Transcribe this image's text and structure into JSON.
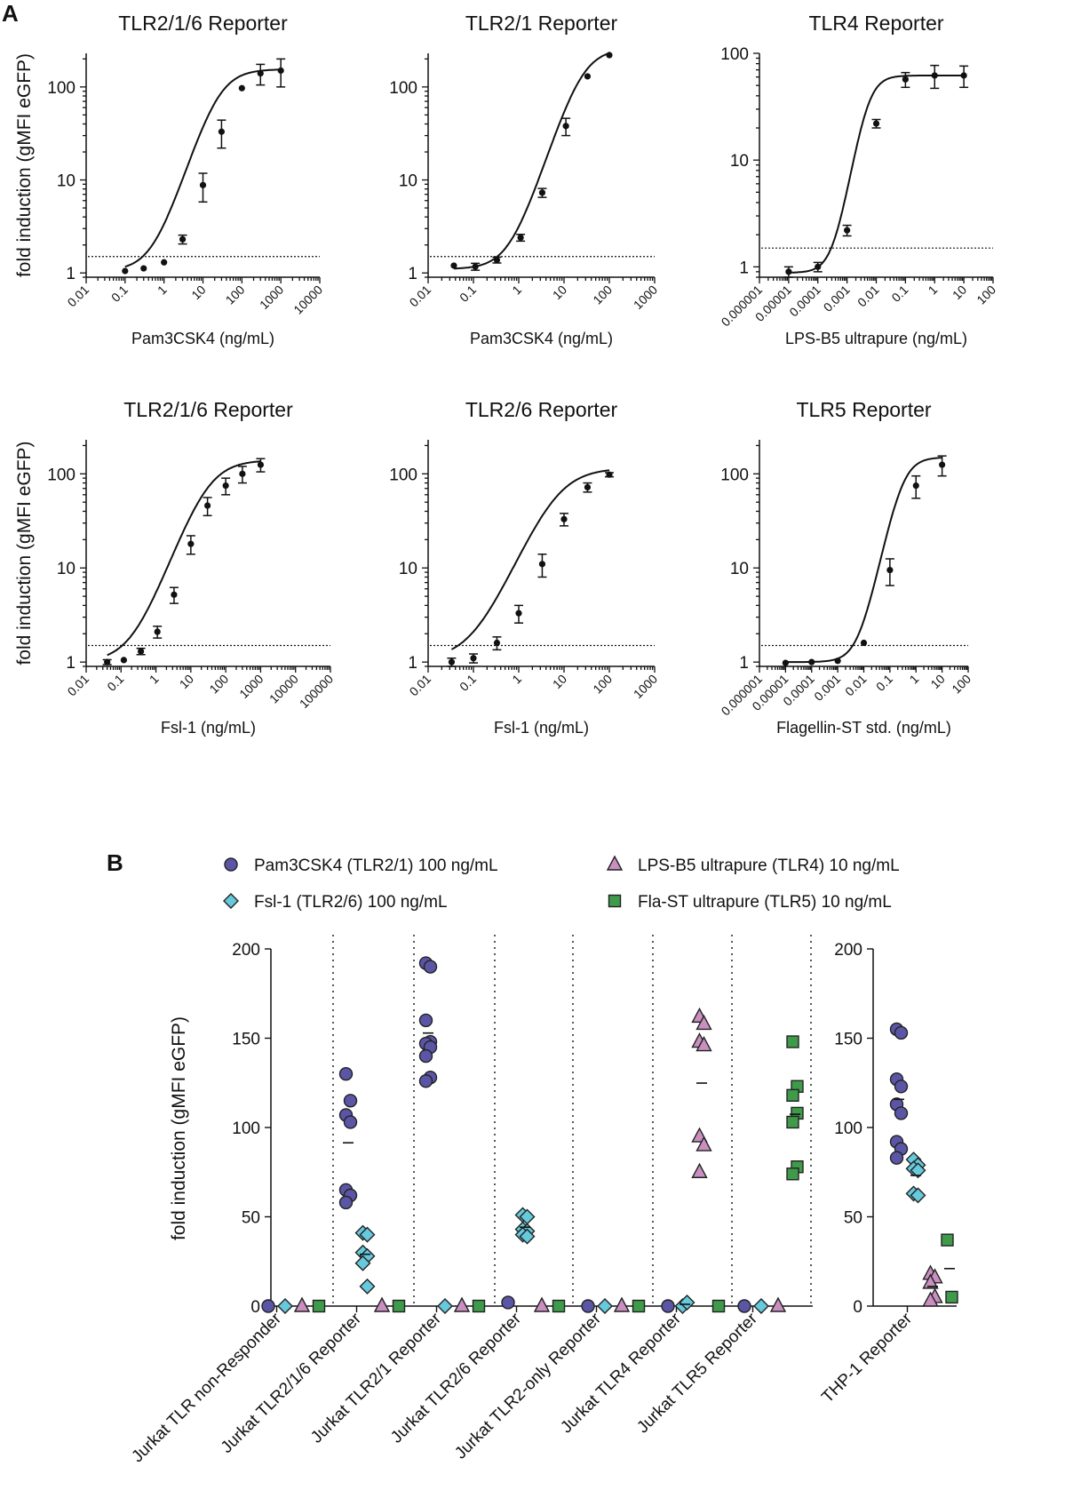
{
  "panel_labels": {
    "a": "A",
    "b": "B"
  },
  "chart_data": [
    {
      "type": "line",
      "title": "TLR2/1/6 Reporter",
      "xlabel": "Pam3CSK4 (ng/mL)",
      "ylabel": "fold induction (gMFI eGFP)",
      "xscale": "log",
      "yscale": "log",
      "xlim": [
        0.01,
        10000
      ],
      "ylim": [
        0.9,
        230
      ],
      "xticks": [
        "0.01",
        "0.1",
        "1",
        "10",
        "100",
        "1000",
        "10000"
      ],
      "yticks": [
        "1",
        "10",
        "100"
      ],
      "threshold": 1.5,
      "points": [
        {
          "x": 0.1,
          "y": 1.05
        },
        {
          "x": 0.3,
          "y": 1.12
        },
        {
          "x": 1,
          "y": 1.3
        },
        {
          "x": 3,
          "y": 2.3,
          "err": 0.25
        },
        {
          "x": 10,
          "y": 8.8,
          "err": 3
        },
        {
          "x": 30,
          "y": 33,
          "err": 11
        },
        {
          "x": 100,
          "y": 97
        },
        {
          "x": 300,
          "y": 140,
          "err": 35
        },
        {
          "x": 1000,
          "y": 150,
          "err": 50
        }
      ],
      "curve": {
        "bottom": 1.05,
        "top": 155,
        "ec50": 25,
        "hill": 1.3
      }
    },
    {
      "type": "line",
      "title": "TLR2/1 Reporter",
      "xlabel": "Pam3CSK4 (ng/mL)",
      "ylabel": "",
      "xscale": "log",
      "yscale": "log",
      "xlim": [
        0.01,
        1000
      ],
      "ylim": [
        0.9,
        230
      ],
      "xticks": [
        "0.01",
        "0.1",
        "1",
        "10",
        "100",
        "1000"
      ],
      "yticks": [
        "1",
        "10",
        "100"
      ],
      "threshold": 1.5,
      "points": [
        {
          "x": 0.037,
          "y": 1.2
        },
        {
          "x": 0.11,
          "y": 1.17,
          "err": 0.1
        },
        {
          "x": 0.33,
          "y": 1.38,
          "err": 0.1
        },
        {
          "x": 1.1,
          "y": 2.4,
          "err": 0.2
        },
        {
          "x": 3.3,
          "y": 7.3,
          "err": 0.8
        },
        {
          "x": 11,
          "y": 38,
          "err": 8
        },
        {
          "x": 33,
          "y": 130
        },
        {
          "x": 100,
          "y": 220
        }
      ],
      "curve": {
        "bottom": 1.1,
        "top": 260,
        "ec50": 25,
        "hill": 1.5
      }
    },
    {
      "type": "line",
      "title": "TLR4 Reporter",
      "xlabel": "LPS-B5 ultrapure (ng/mL)",
      "ylabel": "",
      "xscale": "log",
      "yscale": "log",
      "xlim": [
        1e-06,
        100
      ],
      "ylim": [
        0.8,
        100
      ],
      "xticks": [
        "0.000001",
        "0.00001",
        "0.0001",
        "0.001",
        "0.01",
        "0.1",
        "1",
        "10",
        "100"
      ],
      "yticks": [
        "1",
        "10",
        "100"
      ],
      "threshold": 1.5,
      "points": [
        {
          "x": 1e-05,
          "y": 0.9,
          "err": 0.1
        },
        {
          "x": 0.0001,
          "y": 1.0,
          "err": 0.1
        },
        {
          "x": 0.001,
          "y": 2.2,
          "err": 0.25
        },
        {
          "x": 0.01,
          "y": 22,
          "err": 2
        },
        {
          "x": 0.1,
          "y": 57,
          "err": 9
        },
        {
          "x": 1,
          "y": 62,
          "err": 15
        },
        {
          "x": 10,
          "y": 62,
          "err": 14
        }
      ],
      "curve": {
        "bottom": 0.88,
        "top": 62,
        "ec50": 0.005,
        "hill": 1.6
      }
    },
    {
      "type": "line",
      "title": "TLR2/1/6 Reporter",
      "xlabel": "Fsl-1 (ng/mL)",
      "ylabel": "fold induction (gMFI eGFP)",
      "xscale": "log",
      "yscale": "log",
      "xlim": [
        0.01,
        100000
      ],
      "ylim": [
        0.9,
        230
      ],
      "xticks": [
        "0.01",
        "0.1",
        "1",
        "10",
        "100",
        "1000",
        "10000",
        "100000"
      ],
      "yticks": [
        "1",
        "10",
        "100"
      ],
      "threshold": 1.5,
      "points": [
        {
          "x": 0.04,
          "y": 1.0,
          "err": 0.06
        },
        {
          "x": 0.12,
          "y": 1.05
        },
        {
          "x": 0.37,
          "y": 1.3,
          "err": 0.1
        },
        {
          "x": 1.1,
          "y": 2.1,
          "err": 0.3
        },
        {
          "x": 3.3,
          "y": 5.2,
          "err": 1
        },
        {
          "x": 10,
          "y": 18,
          "err": 4
        },
        {
          "x": 30,
          "y": 46,
          "err": 10
        },
        {
          "x": 100,
          "y": 75,
          "err": 15
        },
        {
          "x": 300,
          "y": 100,
          "err": 20
        },
        {
          "x": 1000,
          "y": 125,
          "err": 20
        }
      ],
      "curve": {
        "bottom": 1.0,
        "top": 140,
        "ec50": 30,
        "hill": 1.0
      }
    },
    {
      "type": "line",
      "title": "TLR2/6 Reporter",
      "xlabel": "Fsl-1 (ng/mL)",
      "ylabel": "",
      "xscale": "log",
      "yscale": "log",
      "xlim": [
        0.01,
        1000
      ],
      "ylim": [
        0.9,
        230
      ],
      "xticks": [
        "0.01",
        "0.1",
        "1",
        "10",
        "100",
        "1000"
      ],
      "yticks": [
        "1",
        "10",
        "100"
      ],
      "threshold": 1.5,
      "points": [
        {
          "x": 0.033,
          "y": 1.0,
          "err": 0.1
        },
        {
          "x": 0.1,
          "y": 1.1,
          "err": 0.12
        },
        {
          "x": 0.33,
          "y": 1.6,
          "err": 0.25
        },
        {
          "x": 1,
          "y": 3.3,
          "err": 0.7
        },
        {
          "x": 3.3,
          "y": 11,
          "err": 3
        },
        {
          "x": 10,
          "y": 33,
          "err": 5
        },
        {
          "x": 33,
          "y": 72,
          "err": 8
        },
        {
          "x": 100,
          "y": 98,
          "err": 5
        }
      ],
      "curve": {
        "bottom": 1.05,
        "top": 115,
        "ec50": 7,
        "hill": 1.1
      }
    },
    {
      "type": "line",
      "title": "TLR5 Reporter",
      "xlabel": "Flagellin-ST std. (ng/mL)",
      "ylabel": "",
      "xscale": "log",
      "yscale": "log",
      "xlim": [
        1e-06,
        100
      ],
      "ylim": [
        0.9,
        230
      ],
      "xticks": [
        "0.000001",
        "0.00001",
        "0.0001",
        "0.001",
        "0.01",
        "0.1",
        "1",
        "10",
        "100"
      ],
      "yticks": [
        "1",
        "10",
        "100"
      ],
      "threshold": 1.5,
      "points": [
        {
          "x": 1e-05,
          "y": 0.98
        },
        {
          "x": 0.0001,
          "y": 1.0
        },
        {
          "x": 0.001,
          "y": 1.03
        },
        {
          "x": 0.01,
          "y": 1.6
        },
        {
          "x": 0.1,
          "y": 9.5,
          "err": 3
        },
        {
          "x": 1,
          "y": 75,
          "err": 20
        },
        {
          "x": 10,
          "y": 125,
          "err": 30
        }
      ],
      "curve": {
        "bottom": 1.0,
        "top": 150,
        "ec50": 0.3,
        "hill": 1.3
      }
    },
    {
      "type": "scatter",
      "title": "",
      "ylabel": "fold induction (gMFI eGFP)",
      "ylim": [
        0,
        200
      ],
      "yticks": [
        "0",
        "50",
        "100",
        "150",
        "200"
      ],
      "legend": [
        {
          "label": "Pam3CSK4 (TLR2/1) 100 ng/mL",
          "marker": "circle",
          "color": "#5b55a6"
        },
        {
          "label": "Fsl-1 (TLR2/6) 100 ng/mL",
          "marker": "diamond",
          "color": "#66c9dc"
        },
        {
          "label": "LPS-B5 ultrapure (TLR4) 10 ng/mL",
          "marker": "triangle",
          "color": "#c98fc0"
        },
        {
          "label": "Fla-ST ultrapure (TLR5) 10 ng/mL",
          "marker": "square",
          "color": "#3f9b4a"
        }
      ],
      "categories": [
        "Jurkat TLR non-Responder",
        "Jurkat TLR2/1/6 Reporter",
        "Jurkat TLR2/1 Reporter",
        "Jurkat TLR2/6 Reporter",
        "Jurkat TLR2-only Reporter",
        "Jurkat TLR4 Reporter",
        "Jurkat TLR5 Reporter",
        "THP-1 Reporter"
      ],
      "series": [
        {
          "name": "Pam3CSK4 (TLR2/1) 100 ng/mL",
          "values": [
            [
              0
            ],
            [
              130,
              115,
              107,
              103,
              65,
              62,
              58
            ],
            [
              192,
              190,
              160,
              148,
              147,
              145,
              140,
              128,
              126
            ],
            [
              2
            ],
            [
              0
            ],
            [
              0
            ],
            [
              0
            ],
            [
              155,
              153,
              127,
              123,
              113,
              108,
              92,
              88,
              83
            ]
          ]
        },
        {
          "name": "Fsl-1 (TLR2/6) 100 ng/mL",
          "values": [
            [
              0
            ],
            [
              41,
              40,
              30,
              28,
              24,
              11
            ],
            [
              0
            ],
            [
              51,
              50,
              43,
              42,
              40,
              39
            ],
            [
              0
            ],
            [
              0,
              2
            ],
            [
              0
            ],
            [
              82,
              79,
              77,
              76,
              63,
              62
            ]
          ]
        },
        {
          "name": "LPS-B5 ultrapure (TLR4) 10 ng/mL",
          "values": [
            [
              0
            ],
            [
              0
            ],
            [
              0
            ],
            [
              0
            ],
            [
              0
            ],
            [
              162,
              158,
              148,
              146,
              95,
              90,
              75
            ],
            [
              0
            ],
            [
              18,
              16,
              13,
              5,
              3
            ]
          ]
        },
        {
          "name": "Fla-ST ultrapure (TLR5) 10 ng/mL",
          "values": [
            [
              0
            ],
            [
              0
            ],
            [
              0
            ],
            [
              0
            ],
            [
              0
            ],
            [
              0
            ],
            [
              148,
              123,
              118,
              108,
              103,
              78,
              74
            ],
            [
              37,
              5
            ]
          ]
        }
      ]
    }
  ]
}
